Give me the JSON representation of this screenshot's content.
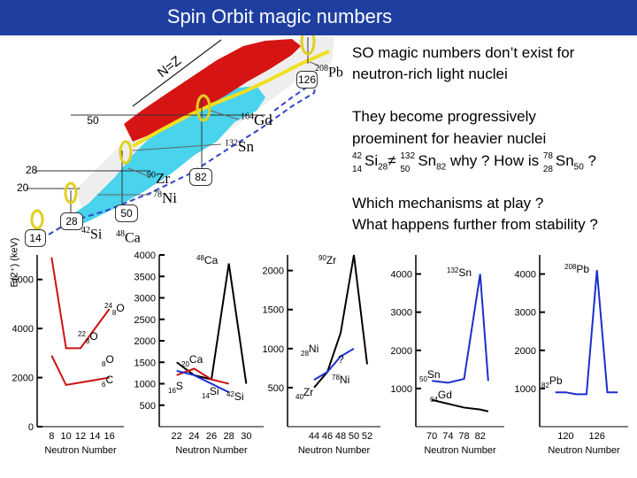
{
  "title": "Spin Orbit magic numbers",
  "chart_label": {
    "nz_line": "N=Z",
    "magic_boxes": [
      "126",
      "50",
      "82",
      "28",
      "50",
      "14"
    ],
    "side_magic": [
      "28",
      "20"
    ],
    "nuclei": {
      "pb": {
        "mass": "208",
        "sym": "Pb"
      },
      "gd": {
        "mass": "164",
        "sym": "Gd"
      },
      "sn": {
        "mass": "132",
        "sym": "Sn"
      },
      "zr": {
        "mass": "90",
        "sym": "Zr"
      },
      "ni": {
        "mass": "78",
        "sym": "Ni"
      },
      "si": {
        "mass": "42",
        "sym": "Si"
      },
      "ca": {
        "mass": "48",
        "sym": "Ca"
      }
    }
  },
  "text": {
    "line1": "SO magic numbers don’t exist for",
    "line2": "neutron-rich light nuclei",
    "line3": "They become progressively",
    "line4": "proeminent for heavier nuclei",
    "eq_why": "why ? How is",
    "eq_q": "?",
    "line6": "Which mechanisms at play ?",
    "line7": "What happens further from stability ?",
    "iso": {
      "si": {
        "a": "42",
        "z": "14",
        "sym": "Si",
        "n": "28"
      },
      "neq": "≠",
      "sn": {
        "a": "132",
        "z": "50",
        "sym": "Sn",
        "n": "82"
      },
      "sn2": {
        "a": "78",
        "z": "28",
        "sym": "Sn",
        "n": "50"
      }
    }
  },
  "colors": {
    "title_bg": "#1f3fa0",
    "red": "#cc1111",
    "blue": "#1a2fcc",
    "cyan": "#49d3ec",
    "yellow": "#f0e020"
  },
  "chart_data": {
    "type": "line",
    "ylabel_main": "E(2⁺) (keV)",
    "xlabel": "Neutron Number",
    "panels": [
      {
        "id": "p1",
        "xlim": [
          6,
          18
        ],
        "ylim": [
          0,
          7000
        ],
        "yticks": [
          "0",
          "2000",
          "4000",
          "6000"
        ],
        "xticks": [
          "8",
          "10",
          "12",
          "14",
          "16"
        ],
        "labels": [
          {
            "sup": "24",
            "sub": "8",
            "sym": "O"
          },
          {
            "sup": "22",
            "sub": "8",
            "sym": "O"
          },
          {
            "sup": "",
            "sub": "8",
            "sym": "O"
          },
          {
            "sup": "",
            "sub": "6",
            "sym": "C"
          }
        ],
        "series": [
          {
            "name": "O",
            "color": "red",
            "x": [
              8,
              10,
              12,
              14,
              16
            ],
            "y": [
              6900,
              3200,
              3200,
              4000,
              4800
            ]
          },
          {
            "name": "C",
            "color": "red",
            "x": [
              8,
              10,
              12,
              14,
              16
            ],
            "y": [
              2900,
              1700,
              1800,
              1900,
              2000
            ]
          }
        ]
      },
      {
        "id": "p2",
        "xlim": [
          20,
          32
        ],
        "ylim": [
          0,
          4000
        ],
        "yticks": [
          "500",
          "1000",
          "1500",
          "2000",
          "2500",
          "3000",
          "3500",
          "4000"
        ],
        "xticks": [
          "22",
          "24",
          "26",
          "28",
          "30"
        ],
        "labels": [
          {
            "sup": "48",
            "sub": "",
            "sym": "Ca"
          },
          {
            "sup": "",
            "sub": "20",
            "sym": "Ca"
          },
          {
            "sup": "",
            "sub": "16",
            "sym": "S"
          },
          {
            "sup": "",
            "sub": "14",
            "sym": "Si"
          },
          {
            "sup": "42",
            "sub": "",
            "sym": "Si"
          }
        ],
        "series": [
          {
            "name": "Ca",
            "color": "black",
            "x": [
              22,
              24,
              26,
              28,
              30
            ],
            "y": [
              1500,
              1200,
              1100,
              3800,
              1000
            ]
          },
          {
            "name": "S",
            "color": "red",
            "x": [
              22,
              24,
              26,
              28
            ],
            "y": [
              1200,
              1350,
              1100,
              1000
            ]
          },
          {
            "name": "Si",
            "color": "blue",
            "x": [
              22,
              24,
              26,
              28
            ],
            "y": [
              1300,
              1200,
              1000,
              800
            ]
          }
        ]
      },
      {
        "id": "p3",
        "xlim": [
          40,
          54
        ],
        "ylim": [
          0,
          2200
        ],
        "yticks": [
          "500",
          "1000",
          "1500",
          "2000"
        ],
        "xticks": [
          "44",
          "46",
          "48",
          "50",
          "52"
        ],
        "labels": [
          {
            "sup": "90",
            "sub": "",
            "sym": "Zr"
          },
          {
            "sup": "",
            "sub": "28",
            "sym": "Ni"
          },
          {
            "sup": "78",
            "sub": "",
            "sym": "Ni"
          },
          {
            "sup": "",
            "sub": "40",
            "sym": "Zr"
          },
          {
            "sup": "",
            "sub": "",
            "sym": "?"
          }
        ],
        "series": [
          {
            "name": "Zr",
            "color": "black",
            "x": [
              44,
              46,
              48,
              50,
              52
            ],
            "y": [
              500,
              700,
              1200,
              2200,
              800
            ]
          },
          {
            "name": "Ni",
            "color": "blue",
            "x": [
              44,
              46,
              48,
              50
            ],
            "y": [
              600,
              700,
              900,
              1000
            ]
          }
        ]
      },
      {
        "id": "p4",
        "xlim": [
          66,
          88
        ],
        "ylim": [
          0,
          4500
        ],
        "yticks": [
          "1000",
          "2000",
          "3000",
          "4000"
        ],
        "xticks": [
          "70",
          "74",
          "78",
          "82"
        ],
        "labels": [
          {
            "sup": "132",
            "sub": "",
            "sym": "Sn"
          },
          {
            "sup": "",
            "sub": "50",
            "sym": "Sn"
          },
          {
            "sup": "",
            "sub": "64",
            "sym": "Gd"
          }
        ],
        "series": [
          {
            "name": "Sn",
            "color": "blue",
            "x": [
              70,
              74,
              78,
              82,
              84
            ],
            "y": [
              1200,
              1150,
              1250,
              4000,
              1200
            ]
          },
          {
            "name": "Gd",
            "color": "black",
            "x": [
              70,
              74,
              78,
              82,
              84
            ],
            "y": [
              700,
              600,
              500,
              450,
              400
            ]
          }
        ]
      },
      {
        "id": "p5",
        "xlim": [
          115,
          132
        ],
        "ylim": [
          0,
          4500
        ],
        "yticks": [
          "1000",
          "2000",
          "3000",
          "4000"
        ],
        "xticks": [
          "120",
          "126"
        ],
        "labels": [
          {
            "sup": "208",
            "sub": "",
            "sym": "Pb"
          },
          {
            "sup": "",
            "sub": "82",
            "sym": "Pb"
          }
        ],
        "series": [
          {
            "name": "Pb",
            "color": "blue",
            "x": [
              118,
              120,
              122,
              124,
              126,
              128,
              130
            ],
            "y": [
              900,
              900,
              850,
              850,
              4100,
              900,
              900
            ]
          }
        ]
      }
    ]
  }
}
